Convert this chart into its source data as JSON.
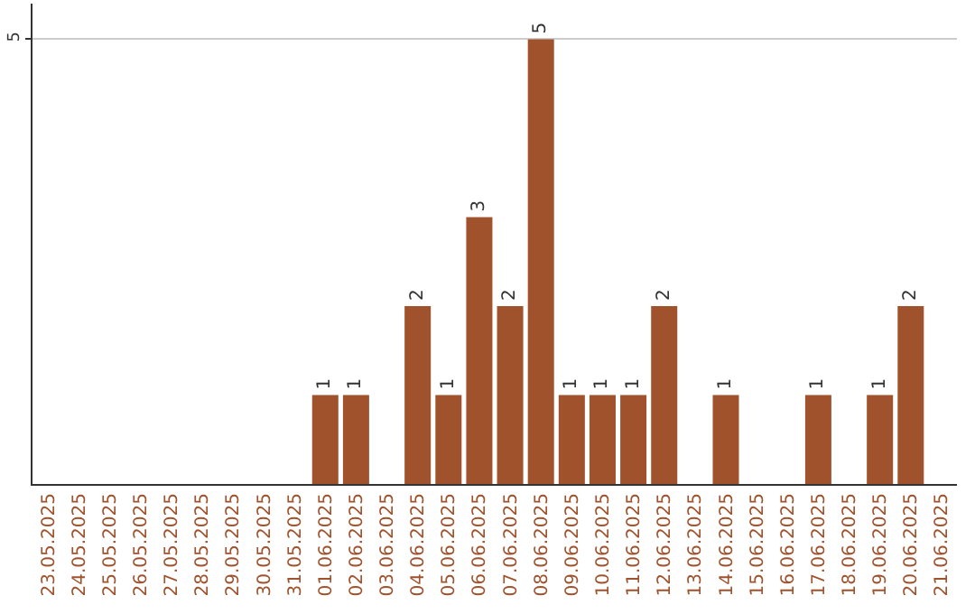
{
  "chart_data": {
    "type": "bar",
    "categories": [
      "23.05.2025",
      "24.05.2025",
      "25.05.2025",
      "26.05.2025",
      "27.05.2025",
      "28.05.2025",
      "29.05.2025",
      "30.05.2025",
      "31.05.2025",
      "01.06.2025",
      "02.06.2025",
      "03.06.2025",
      "04.06.2025",
      "05.06.2025",
      "06.06.2025",
      "07.06.2025",
      "08.06.2025",
      "09.06.2025",
      "10.06.2025",
      "11.06.2025",
      "12.06.2025",
      "13.06.2025",
      "14.06.2025",
      "15.06.2025",
      "16.06.2025",
      "17.06.2025",
      "18.06.2025",
      "19.06.2025",
      "20.06.2025",
      "21.06.2025"
    ],
    "values": [
      0,
      0,
      0,
      0,
      0,
      0,
      0,
      0,
      0,
      1,
      1,
      0,
      2,
      1,
      3,
      2,
      5,
      1,
      1,
      1,
      2,
      0,
      1,
      0,
      0,
      1,
      0,
      1,
      2,
      0
    ],
    "value_labels": [
      null,
      null,
      null,
      null,
      null,
      null,
      null,
      null,
      null,
      "1",
      "1",
      null,
      "2",
      "1",
      "3",
      "2",
      "5",
      "1",
      "1",
      "1",
      "2",
      null,
      "1",
      null,
      null,
      "1",
      null,
      "1",
      "2",
      null
    ],
    "color": "#a0522d",
    "ylim": [
      0,
      5.4
    ],
    "yticks": [
      5
    ],
    "grid": "y",
    "legend": false
  }
}
